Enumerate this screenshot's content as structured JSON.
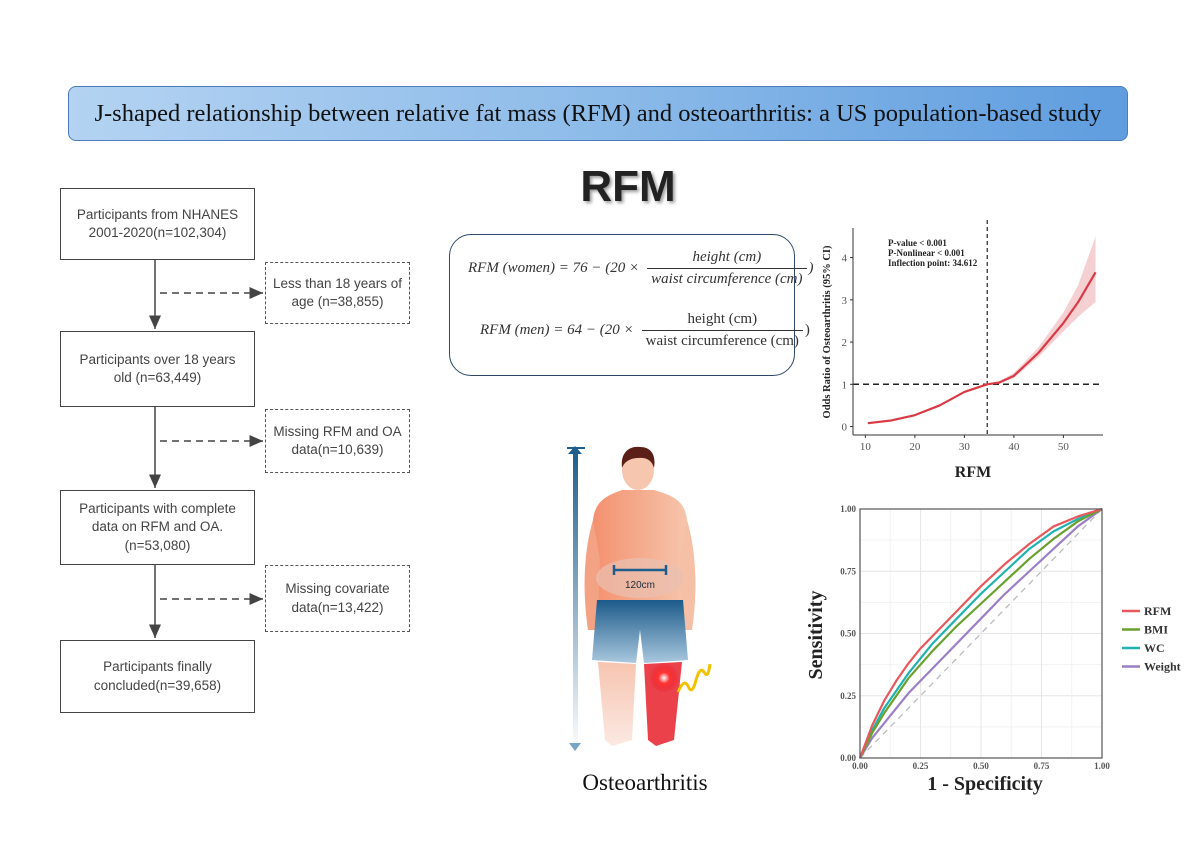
{
  "title": "J-shaped relationship between relative fat mass (RFM) and osteoarthritis: a US population-based study",
  "heading": "RFM",
  "flowchart": {
    "main_boxes": [
      "Participants from NHANES 2001-2020(n=102,304)",
      "Participants over 18 years old (n=63,449)",
      "Participants with complete data on RFM and OA. (n=53,080)",
      "Participants finally concluded(n=39,658)"
    ],
    "exclusion_boxes": [
      "Less than 18 years of age (n=38,855)",
      "Missing RFM and OA data(n=10,639)",
      "Missing covariate data(n=13,422)"
    ]
  },
  "formulas": {
    "women": {
      "lhs": "RFM (women) = 76 − (20 ×",
      "numerator": "height (cm)",
      "denominator": "waist circumference (cm)",
      "close": ")"
    },
    "men": {
      "lhs": "RFM (men) = 64 − (20 ×",
      "numerator": "height (cm)",
      "denominator": "waist circumference (cm)",
      "close": ")"
    }
  },
  "illustration": {
    "waist_label": "120cm",
    "caption": "Osteoarthritis",
    "colors": {
      "skin": "#f4a58a",
      "shorts": "#1f5d8c",
      "knee_pain": "#e8202a",
      "pain_wave": "#f2c200"
    }
  },
  "chart_data": [
    {
      "type": "line",
      "xlabel": "RFM",
      "ylabel": "Odds Ratio of Osteoarthritis (95% CI)",
      "xlim": [
        7.5,
        58
      ],
      "ylim": [
        -0.2,
        4.7
      ],
      "xticks": [
        10,
        20,
        30,
        40,
        50
      ],
      "yticks": [
        0,
        1,
        2,
        3,
        4
      ],
      "annotations": [
        "P-value < 0.001",
        "P-Nonlinear < 0.001",
        "Inflection point: 34.612"
      ],
      "reference_lines": {
        "x": 34.612,
        "y": 1
      },
      "grid": false,
      "series": [
        {
          "color": "#d93a45",
          "band_color": "#f3c4c8",
          "x": [
            10.5,
            15,
            20,
            25,
            30,
            34.6,
            37,
            40,
            45,
            50,
            53,
            56.5
          ],
          "y": [
            0.08,
            0.14,
            0.27,
            0.5,
            0.82,
            1.0,
            1.04,
            1.2,
            1.75,
            2.45,
            2.95,
            3.65
          ],
          "lower": [
            0.06,
            0.12,
            0.25,
            0.48,
            0.8,
            0.99,
            1.01,
            1.15,
            1.65,
            2.25,
            2.6,
            2.95
          ],
          "upper": [
            0.1,
            0.16,
            0.29,
            0.52,
            0.84,
            1.01,
            1.07,
            1.27,
            1.88,
            2.7,
            3.35,
            4.5
          ]
        }
      ]
    },
    {
      "type": "line",
      "xlabel": "1 - Specificity",
      "ylabel": "Sensitivity",
      "xlim": [
        0,
        1
      ],
      "ylim": [
        0,
        1
      ],
      "xticks": [
        "0.00",
        "0.25",
        "0.50",
        "0.75",
        "1.00"
      ],
      "yticks": [
        "0.00",
        "0.25",
        "0.50",
        "0.75",
        "1.00"
      ],
      "grid": true,
      "legend": "right",
      "series": [
        {
          "name": "RFM",
          "color": "#e8585c",
          "x": [
            0,
            0.05,
            0.1,
            0.15,
            0.2,
            0.25,
            0.3,
            0.4,
            0.5,
            0.6,
            0.7,
            0.8,
            0.9,
            1
          ],
          "y": [
            0,
            0.13,
            0.23,
            0.31,
            0.38,
            0.44,
            0.49,
            0.59,
            0.69,
            0.78,
            0.86,
            0.93,
            0.97,
            1
          ]
        },
        {
          "name": "BMI",
          "color": "#6aa12e",
          "x": [
            0,
            0.05,
            0.1,
            0.2,
            0.3,
            0.4,
            0.5,
            0.6,
            0.7,
            0.8,
            0.9,
            1
          ],
          "y": [
            0,
            0.1,
            0.18,
            0.32,
            0.43,
            0.53,
            0.62,
            0.71,
            0.8,
            0.88,
            0.95,
            1
          ]
        },
        {
          "name": "WC",
          "color": "#1fb3b0",
          "x": [
            0,
            0.05,
            0.1,
            0.2,
            0.3,
            0.4,
            0.5,
            0.6,
            0.7,
            0.8,
            0.9,
            1
          ],
          "y": [
            0,
            0.11,
            0.2,
            0.34,
            0.46,
            0.56,
            0.66,
            0.75,
            0.84,
            0.91,
            0.96,
            1
          ]
        },
        {
          "name": "Weight",
          "color": "#9b7fc6",
          "x": [
            0,
            0.05,
            0.1,
            0.2,
            0.3,
            0.4,
            0.5,
            0.6,
            0.7,
            0.8,
            0.9,
            1
          ],
          "y": [
            0,
            0.08,
            0.14,
            0.26,
            0.36,
            0.46,
            0.56,
            0.66,
            0.75,
            0.84,
            0.93,
            1
          ]
        }
      ]
    }
  ]
}
